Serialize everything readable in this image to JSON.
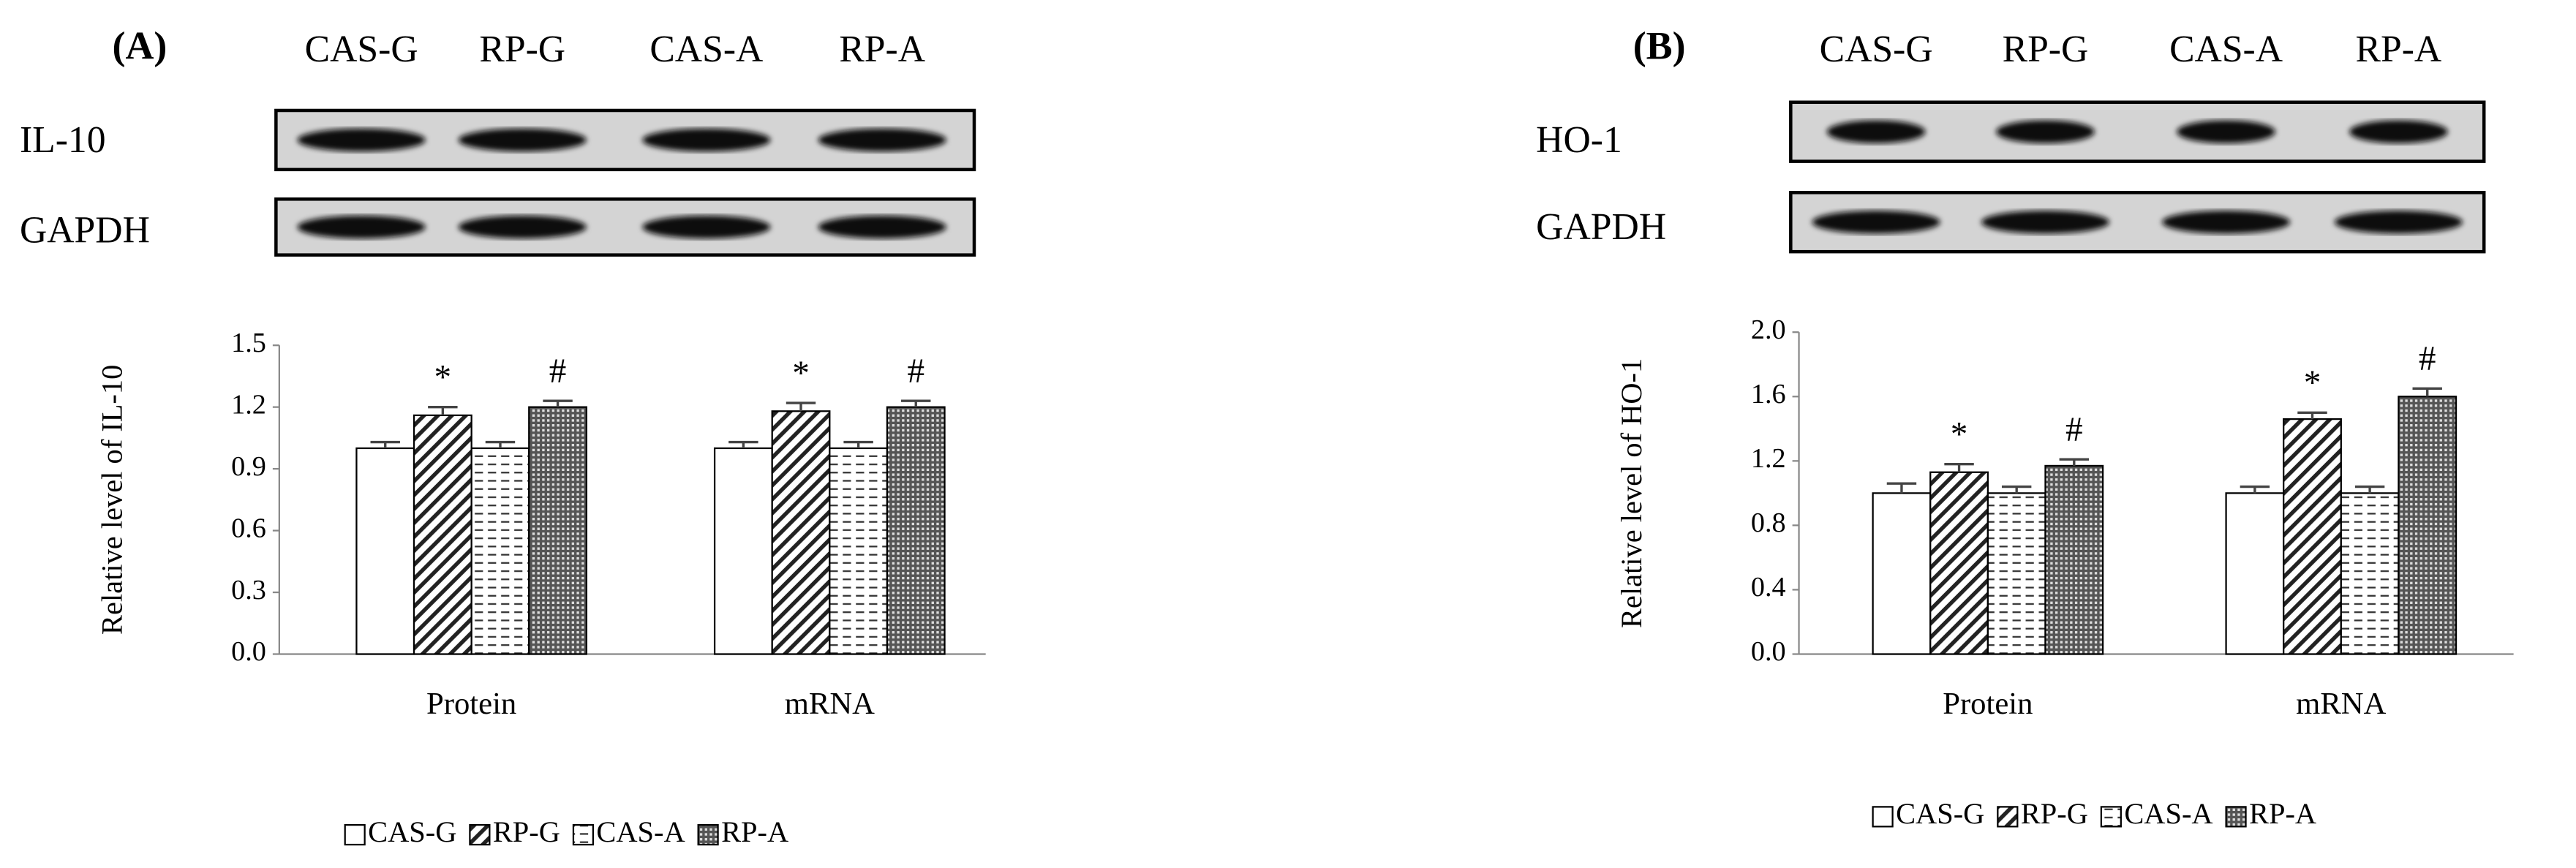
{
  "chart_data": [
    {
      "type": "bar",
      "panel_label": "(A)",
      "lanes": [
        "CAS-G",
        "RP-G",
        "CAS-A",
        "RP-A"
      ],
      "blot_rows": [
        "IL-10",
        "GAPDH"
      ],
      "y_label": "Relative level of IL-10",
      "categories": [
        "Protein",
        "mRNA"
      ],
      "ylim": [
        0,
        1.5
      ],
      "yticks": [
        {
          "value": 0,
          "label": "0.0"
        },
        0.3,
        0.6,
        0.9,
        1.2,
        1.5
      ],
      "series": [
        {
          "name": "CAS-G",
          "pattern": "none",
          "values": [
            1.0,
            1.0
          ],
          "errors": [
            0.03,
            0.03
          ]
        },
        {
          "name": "RP-G",
          "pattern": "diagonal",
          "values": [
            1.16,
            1.18
          ],
          "errors": [
            0.04,
            0.04
          ],
          "annotation": "*"
        },
        {
          "name": "CAS-A",
          "pattern": "dashes",
          "values": [
            1.0,
            1.0
          ],
          "errors": [
            0.03,
            0.03
          ]
        },
        {
          "name": "RP-A",
          "pattern": "crosshatch",
          "values": [
            1.2,
            1.2
          ],
          "errors": [
            0.03,
            0.03
          ],
          "annotation": "#"
        }
      ]
    },
    {
      "type": "bar",
      "panel_label": "(B)",
      "lanes": [
        "CAS-G",
        "RP-G",
        "CAS-A",
        "RP-A"
      ],
      "blot_rows": [
        "HO-1",
        "GAPDH"
      ],
      "y_label": "Relative level of HO-1",
      "categories": [
        "Protein",
        "mRNA"
      ],
      "ylim": [
        0,
        2.0
      ],
      "yticks": [
        {
          "value": 0,
          "label": "0.0"
        },
        0.4,
        0.8,
        1.2,
        1.6,
        {
          "value": 2,
          "label": "2.0"
        }
      ],
      "series": [
        {
          "name": "CAS-G",
          "pattern": "none",
          "values": [
            1.0,
            1.0
          ],
          "errors": [
            0.06,
            0.04
          ]
        },
        {
          "name": "RP-G",
          "pattern": "diagonal",
          "values": [
            1.13,
            1.46
          ],
          "errors": [
            0.05,
            0.04
          ],
          "annotation": "*"
        },
        {
          "name": "CAS-A",
          "pattern": "dashes",
          "values": [
            1.0,
            1.0
          ],
          "errors": [
            0.04,
            0.04
          ]
        },
        {
          "name": "RP-A",
          "pattern": "crosshatch",
          "values": [
            1.17,
            1.6
          ],
          "errors": [
            0.04,
            0.05
          ],
          "annotation": "#"
        }
      ]
    }
  ]
}
